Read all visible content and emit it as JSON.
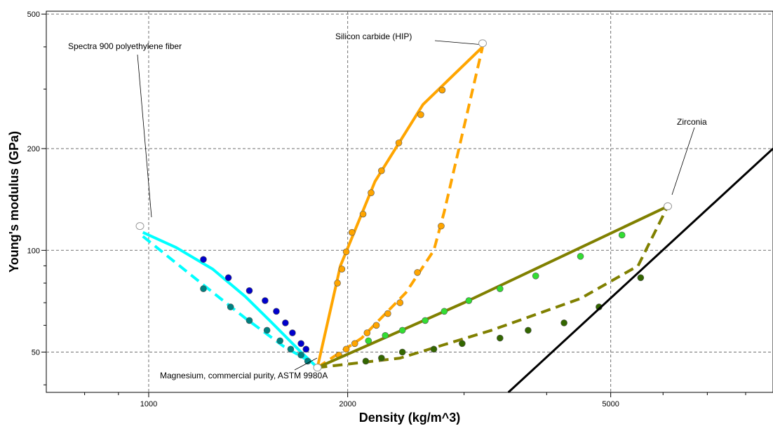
{
  "chart_data": {
    "type": "line",
    "xscale": "log",
    "yscale": "log",
    "xlabel": "Density (kg/m^3)",
    "ylabel": "Young's modulus (GPa)",
    "xlim": [
      700,
      8800
    ],
    "ylim": [
      38,
      510
    ],
    "xticks": [
      {
        "value": 1000,
        "label": "1000"
      },
      {
        "value": 2000,
        "label": "2000"
      },
      {
        "value": 5000,
        "label": "5000"
      }
    ],
    "yticks": [
      {
        "value": 50,
        "label": "50"
      },
      {
        "value": 100,
        "label": "100"
      },
      {
        "value": 200,
        "label": "200"
      },
      {
        "value": 500,
        "label": "500"
      }
    ],
    "xminor": [
      800,
      900,
      3000,
      4000,
      6000,
      7000,
      8000
    ],
    "yminor": [
      40,
      60,
      70,
      80,
      90,
      300,
      400
    ],
    "grid": true,
    "annotations": [
      {
        "text": "Spectra 900 polyethylene fiber",
        "x": 970,
        "y": 118
      },
      {
        "text": "Silicon carbide (HIP)",
        "x": 3200,
        "y": 410
      },
      {
        "text": "Zirconia",
        "x": 6100,
        "y": 135
      },
      {
        "text": "Magnesium, commercial purity, ASTM 9980A",
        "x": 1800,
        "y": 45
      }
    ],
    "series": [
      {
        "color": "#00ffff",
        "dash": false,
        "marker": "#0000cc",
        "x": [
          980,
          1100,
          1250,
          1400,
          1550,
          1700,
          1800
        ],
        "y": [
          113,
          102,
          88,
          73,
          60,
          50,
          45
        ],
        "markers": [
          [
            1210,
            94
          ],
          [
            1320,
            83
          ],
          [
            1420,
            76
          ],
          [
            1500,
            71
          ],
          [
            1560,
            66
          ],
          [
            1610,
            61
          ],
          [
            1650,
            57
          ],
          [
            1700,
            53
          ],
          [
            1730,
            51
          ]
        ]
      },
      {
        "color": "#00ffff",
        "dash": true,
        "marker": "#008080",
        "x": [
          980,
          1200,
          1400,
          1600,
          1750,
          1800
        ],
        "y": [
          110,
          80,
          63,
          52,
          47,
          45
        ],
        "markers": [
          [
            1210,
            77
          ],
          [
            1330,
            68
          ],
          [
            1420,
            62
          ],
          [
            1510,
            58
          ],
          [
            1580,
            54
          ],
          [
            1640,
            51
          ],
          [
            1700,
            49
          ],
          [
            1740,
            47
          ]
        ]
      },
      {
        "color": "#ffa500",
        "dash": false,
        "marker": "#ffa500",
        "x": [
          1800,
          1950,
          2200,
          2600,
          3200
        ],
        "y": [
          45,
          90,
          160,
          270,
          400
        ],
        "markers": [
          [
            1930,
            80
          ],
          [
            1960,
            88
          ],
          [
            1990,
            99
          ],
          [
            2030,
            113
          ],
          [
            2110,
            128
          ],
          [
            2170,
            148
          ],
          [
            2250,
            172
          ],
          [
            2390,
            208
          ],
          [
            2580,
            252
          ],
          [
            2780,
            298
          ]
        ]
      },
      {
        "color": "#ffa500",
        "dash": true,
        "marker": "#ffa500",
        "x": [
          1800,
          2100,
          2450,
          2700,
          2800,
          3200
        ],
        "y": [
          45,
          55,
          75,
          100,
          130,
          400
        ],
        "markers": [
          [
            1940,
            49
          ],
          [
            1990,
            51
          ],
          [
            2050,
            53
          ],
          [
            2140,
            57
          ],
          [
            2210,
            60
          ],
          [
            2300,
            65
          ],
          [
            2400,
            70
          ],
          [
            2550,
            86
          ],
          [
            2770,
            118
          ]
        ]
      },
      {
        "color": "#808000",
        "dash": false,
        "marker": "#33dd33",
        "x": [
          1800,
          3000,
          6100
        ],
        "y": [
          45,
          70,
          135
        ],
        "markers": [
          [
            2150,
            54
          ],
          [
            2280,
            56
          ],
          [
            2420,
            58
          ],
          [
            2620,
            62
          ],
          [
            2800,
            66
          ],
          [
            3050,
            71
          ],
          [
            3400,
            77
          ],
          [
            3850,
            84
          ],
          [
            4500,
            96
          ],
          [
            5200,
            111
          ]
        ]
      },
      {
        "color": "#808000",
        "dash": true,
        "marker": "#336600",
        "x": [
          1800,
          2400,
          3300,
          4500,
          5500,
          6100
        ],
        "y": [
          45,
          48,
          58,
          72,
          90,
          135
        ],
        "markers": [
          [
            2130,
            47
          ],
          [
            2250,
            48
          ],
          [
            2420,
            50
          ],
          [
            2700,
            51
          ],
          [
            2980,
            53
          ],
          [
            3400,
            55
          ],
          [
            3750,
            58
          ],
          [
            4250,
            61
          ],
          [
            4800,
            68
          ],
          [
            5550,
            83
          ]
        ]
      },
      {
        "color": "#000000",
        "dash": false,
        "marker": null,
        "x": [
          3500,
          8800
        ],
        "y": [
          38,
          200
        ],
        "markers": []
      }
    ]
  }
}
